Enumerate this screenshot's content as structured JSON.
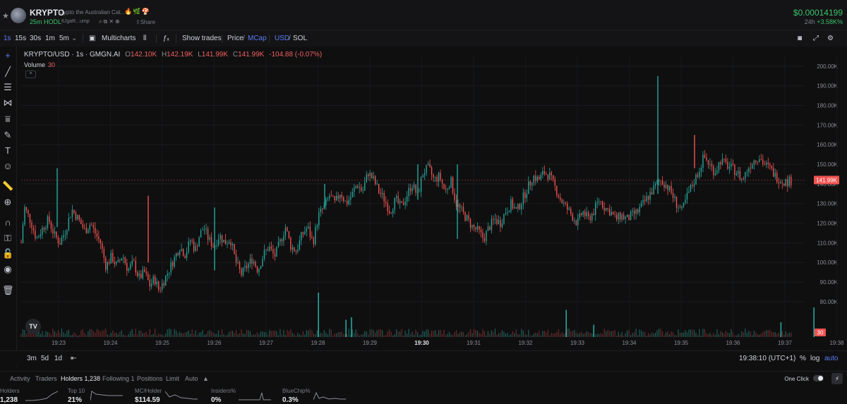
{
  "header": {
    "ticker": "KRYPTO",
    "full_name": "Krypto the Australian Cat...",
    "badges": [
      "fire-icon",
      "leaf-icon",
      "mushroom-icon"
    ],
    "hodl": "25m HODL",
    "address": "6JgaR...ump",
    "address_icons": [
      "search-icon",
      "copy-icon",
      "x-twitter-icon",
      "globe-icon"
    ],
    "share_label": "Share",
    "price": "$0.00014199",
    "change_label": "24h",
    "change_value": "+3.58K%"
  },
  "toolbar": {
    "intervals": [
      "1s",
      "15s",
      "30s",
      "1m",
      "5m"
    ],
    "active_interval": "1s",
    "multicharts_label": "Multicharts",
    "show_trades_label": "Show trades",
    "price_label": "Price",
    "mcap_label": "MCap",
    "usd_label": "USD",
    "sol_label": "SOL",
    "slash": "/"
  },
  "legend": {
    "symbol": "KRYPTO/USD · 1s · GMGN.AI",
    "o_label": "O",
    "o": "142.10K",
    "h_label": "H",
    "h": "142.19K",
    "l_label": "L",
    "l": "141.99K",
    "c_label": "C",
    "c": "141.99K",
    "change": "-104.88 (-0.07%)",
    "volume_label": "Volume",
    "volume_value": "30",
    "tv_logo": "TV"
  },
  "chart_data": {
    "type": "candlestick",
    "title": "KRYPTO/USD · 1s · GMGN.AI",
    "y_ticks": [
      "80.00K",
      "90.00K",
      "100.00K",
      "110.00K",
      "120.00K",
      "130.00K",
      "140.00K",
      "150.00K",
      "160.00K",
      "170.00K",
      "180.00K",
      "190.00K",
      "200.00K"
    ],
    "ylim": [
      62,
      205
    ],
    "x_ticks": [
      "19:23",
      "19:24",
      "19:25",
      "19:26",
      "19:27",
      "19:28",
      "19:29",
      "19:30",
      "19:31",
      "19:32",
      "19:33",
      "19:34",
      "19:35",
      "19:36",
      "19:37",
      "19:38"
    ],
    "last_price_label": "141.99K",
    "last_price": 141.99,
    "volume_label": "30",
    "price_path_k": [
      [
        0,
        110
      ],
      [
        3,
        128
      ],
      [
        8,
        122
      ],
      [
        14,
        112
      ],
      [
        20,
        118
      ],
      [
        25,
        122
      ],
      [
        30,
        114
      ],
      [
        35,
        110
      ],
      [
        40,
        116
      ],
      [
        46,
        127
      ],
      [
        52,
        122
      ],
      [
        58,
        116
      ],
      [
        63,
        120
      ],
      [
        68,
        114
      ],
      [
        72,
        110
      ],
      [
        77,
        98
      ],
      [
        82,
        103
      ],
      [
        87,
        98
      ],
      [
        92,
        104
      ],
      [
        97,
        96
      ],
      [
        102,
        100
      ],
      [
        107,
        92
      ],
      [
        112,
        95
      ],
      [
        117,
        88
      ],
      [
        121,
        92
      ],
      [
        125,
        86
      ],
      [
        129,
        90
      ],
      [
        134,
        96
      ],
      [
        139,
        102
      ],
      [
        144,
        108
      ],
      [
        149,
        104
      ],
      [
        154,
        112
      ],
      [
        158,
        106
      ],
      [
        162,
        114
      ],
      [
        166,
        118
      ],
      [
        170,
        112
      ],
      [
        175,
        108
      ],
      [
        180,
        114
      ],
      [
        185,
        110
      ],
      [
        190,
        112
      ],
      [
        195,
        100
      ],
      [
        200,
        94
      ],
      [
        205,
        98
      ],
      [
        210,
        102
      ],
      [
        215,
        96
      ],
      [
        220,
        104
      ],
      [
        225,
        108
      ],
      [
        230,
        103
      ],
      [
        235,
        110
      ],
      [
        240,
        118
      ],
      [
        245,
        108
      ],
      [
        250,
        106
      ],
      [
        255,
        114
      ],
      [
        260,
        118
      ],
      [
        265,
        110
      ],
      [
        270,
        124
      ],
      [
        275,
        128
      ],
      [
        280,
        134
      ],
      [
        285,
        130
      ],
      [
        290,
        136
      ],
      [
        295,
        130
      ],
      [
        300,
        134
      ],
      [
        305,
        140
      ],
      [
        310,
        136
      ],
      [
        315,
        146
      ],
      [
        320,
        142
      ],
      [
        325,
        136
      ],
      [
        330,
        132
      ],
      [
        335,
        126
      ],
      [
        340,
        132
      ],
      [
        345,
        128
      ],
      [
        350,
        134
      ],
      [
        355,
        140
      ],
      [
        360,
        134
      ],
      [
        365,
        146
      ],
      [
        370,
        148
      ],
      [
        375,
        142
      ],
      [
        380,
        144
      ],
      [
        385,
        136
      ],
      [
        390,
        142
      ],
      [
        395,
        130
      ],
      [
        400,
        126
      ],
      [
        405,
        122
      ],
      [
        410,
        118
      ],
      [
        415,
        116
      ],
      [
        420,
        112
      ],
      [
        425,
        118
      ],
      [
        430,
        122
      ],
      [
        435,
        120
      ],
      [
        440,
        126
      ],
      [
        445,
        130
      ],
      [
        450,
        126
      ],
      [
        455,
        132
      ],
      [
        460,
        138
      ],
      [
        465,
        144
      ],
      [
        470,
        142
      ],
      [
        475,
        146
      ],
      [
        480,
        144
      ],
      [
        485,
        138
      ],
      [
        490,
        132
      ],
      [
        495,
        128
      ],
      [
        500,
        124
      ],
      [
        505,
        120
      ],
      [
        510,
        126
      ],
      [
        515,
        122
      ],
      [
        520,
        126
      ],
      [
        525,
        132
      ],
      [
        530,
        128
      ],
      [
        535,
        126
      ],
      [
        540,
        122
      ],
      [
        545,
        124
      ],
      [
        550,
        122
      ],
      [
        555,
        124
      ],
      [
        560,
        126
      ],
      [
        565,
        130
      ],
      [
        570,
        134
      ],
      [
        575,
        138
      ],
      [
        580,
        142
      ],
      [
        585,
        140
      ],
      [
        590,
        136
      ],
      [
        595,
        130
      ],
      [
        600,
        126
      ],
      [
        605,
        134
      ],
      [
        610,
        140
      ],
      [
        615,
        146
      ],
      [
        620,
        154
      ],
      [
        625,
        150
      ],
      [
        630,
        146
      ],
      [
        635,
        152
      ],
      [
        640,
        150
      ],
      [
        645,
        148
      ],
      [
        650,
        146
      ],
      [
        655,
        142
      ],
      [
        660,
        148
      ],
      [
        665,
        152
      ],
      [
        670,
        154
      ],
      [
        675,
        150
      ],
      [
        680,
        148
      ],
      [
        685,
        144
      ],
      [
        690,
        142
      ],
      [
        695,
        141
      ],
      [
        700,
        141.99
      ]
    ],
    "volume_spikes": [
      [
        270,
        0.9
      ],
      [
        295,
        0.35
      ],
      [
        300,
        0.4
      ],
      [
        495,
        0.55
      ],
      [
        520,
        0.25
      ],
      [
        690,
        0.3
      ],
      [
        720,
        0.6
      ]
    ]
  },
  "chart_footer": {
    "ranges": [
      "3m",
      "5d",
      "1d"
    ],
    "time": "19:38:10 (UTC+1)",
    "percent_label": "%",
    "log_label": "log",
    "auto_label": "auto"
  },
  "tabs": {
    "items": [
      "Activity",
      "Traders",
      "Holders 1,238",
      "Following 1",
      "Positions",
      "Limit",
      "Auto"
    ],
    "active": "Holders 1,238",
    "one_click_label": "One Click"
  },
  "stats": [
    {
      "label": "Holders",
      "value": "1,238"
    },
    {
      "label": "Top 10",
      "value": "21%"
    },
    {
      "label": "MC/Holder",
      "value": "$114.59"
    },
    {
      "label": "Insiders%",
      "value": "0%"
    },
    {
      "label": "BlueChip%",
      "value": "0.3%"
    }
  ],
  "colors": {
    "up": "#26a69a",
    "down": "#ef5350",
    "accent": "#5b7cf6",
    "positive": "#39c26b"
  }
}
